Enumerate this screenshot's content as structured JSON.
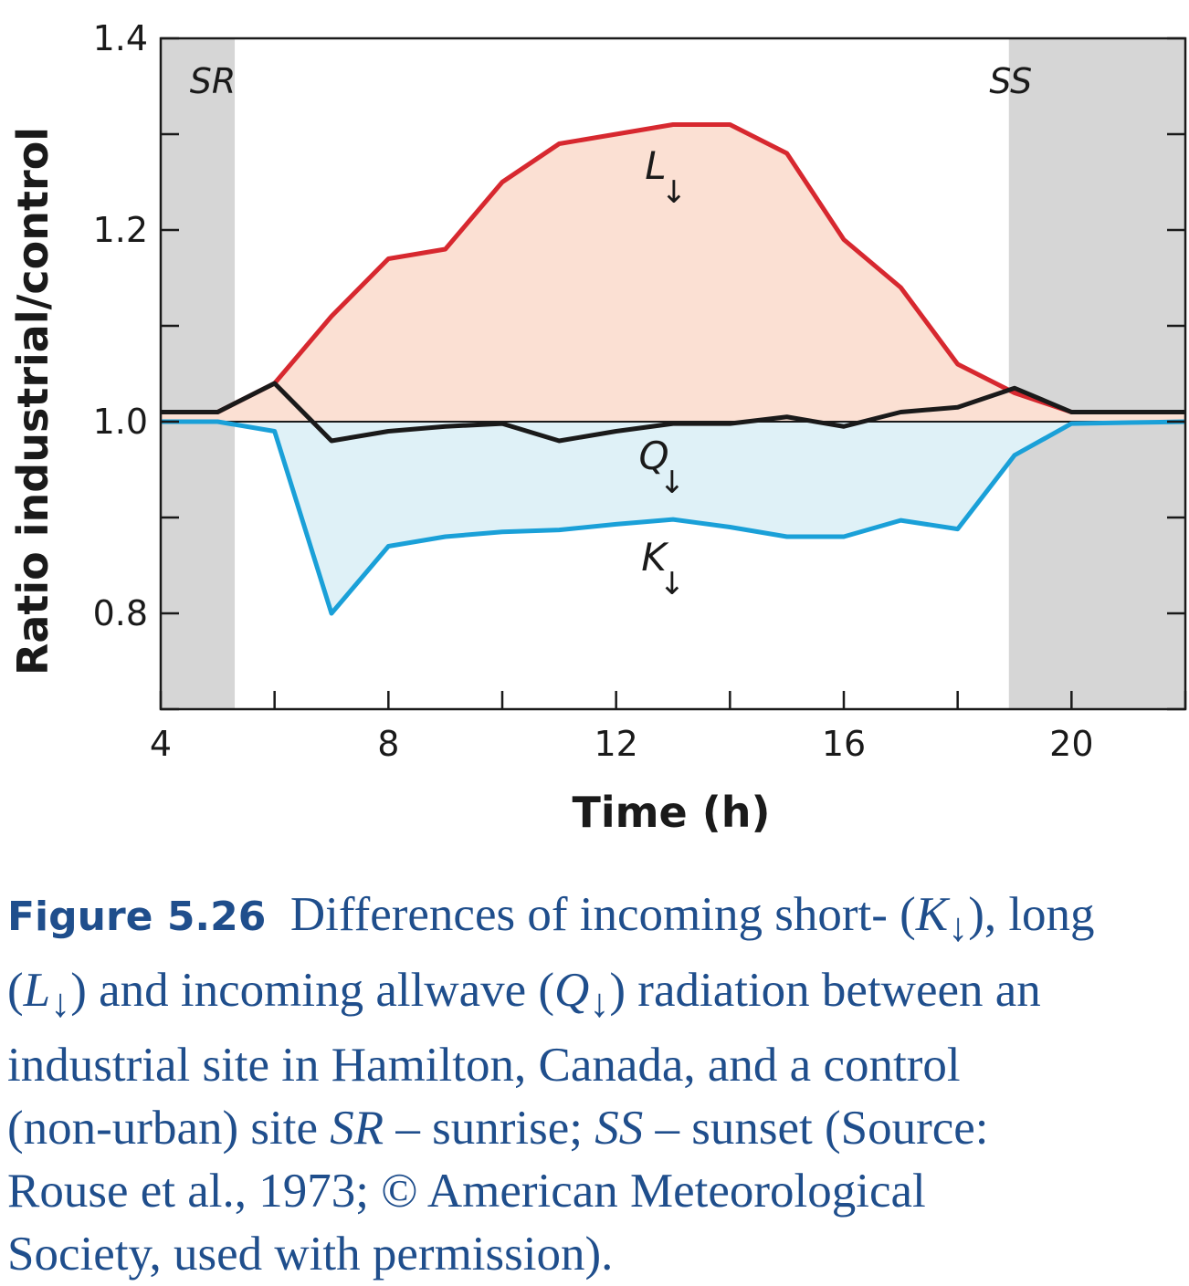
{
  "chart_data": {
    "type": "line",
    "xlabel": "Time (h)",
    "ylabel": "Ratio industrial/control",
    "xlim": [
      4,
      22
    ],
    "ylim": [
      0.7,
      1.4
    ],
    "x_ticks": [
      4,
      6,
      8,
      10,
      12,
      14,
      16,
      18,
      20,
      22
    ],
    "x_tick_labels": [
      "4",
      "8",
      "12",
      "16",
      "20"
    ],
    "x_tick_label_values": [
      4,
      8,
      12,
      16,
      20
    ],
    "y_ticks": [
      0.7,
      0.8,
      0.9,
      1.0,
      1.1,
      1.2,
      1.3,
      1.4
    ],
    "y_tick_labels": [
      "0.8",
      "1.0",
      "1.2",
      "1.4"
    ],
    "y_tick_label_values": [
      0.8,
      1.0,
      1.2,
      1.4
    ],
    "reference_line": 1.0,
    "shaded_periods": [
      {
        "label": "SR",
        "from": 4,
        "to": 5.3
      },
      {
        "label": "SS",
        "from": 18.9,
        "to": 22
      }
    ],
    "series": [
      {
        "name": "L↓",
        "color": "#d7282f",
        "fill": "#fbe0d3",
        "x": [
          4,
          5,
          6,
          7,
          8,
          9,
          10,
          11,
          12,
          13,
          14,
          15,
          16,
          17,
          18,
          19,
          20,
          21,
          22
        ],
        "y": [
          1.01,
          1.01,
          1.04,
          1.11,
          1.17,
          1.18,
          1.25,
          1.29,
          1.3,
          1.31,
          1.31,
          1.28,
          1.19,
          1.14,
          1.06,
          1.03,
          1.01,
          1.01,
          1.01
        ]
      },
      {
        "name": "Q↓",
        "color": "#1a1a1a",
        "x": [
          4,
          5,
          6,
          7,
          8,
          9,
          10,
          11,
          12,
          13,
          14,
          15,
          16,
          17,
          18,
          19,
          20,
          21,
          22
        ],
        "y": [
          1.01,
          1.01,
          1.04,
          0.98,
          0.99,
          0.995,
          0.998,
          0.98,
          0.99,
          0.998,
          0.998,
          1.005,
          0.995,
          1.01,
          1.015,
          1.035,
          1.01,
          1.01,
          1.01
        ]
      },
      {
        "name": "K↓",
        "color": "#1aa0d8",
        "fill": "#dff1f7",
        "x": [
          4,
          5,
          6,
          7,
          8,
          9,
          10,
          11,
          12,
          13,
          14,
          15,
          16,
          17,
          18,
          19,
          20,
          21,
          22
        ],
        "y": [
          1.0,
          1.0,
          0.99,
          0.8,
          0.87,
          0.88,
          0.885,
          0.887,
          0.893,
          0.898,
          0.89,
          0.88,
          0.88,
          0.897,
          0.888,
          0.965,
          0.998,
          0.999,
          1.0
        ]
      }
    ],
    "annotations": [
      {
        "text": "SR",
        "x": 5.3,
        "y": 1.35
      },
      {
        "text": "SS",
        "x": 18.9,
        "y": 1.35
      },
      {
        "text": "L",
        "subscript": "↓",
        "x": 13,
        "y": 1.25
      },
      {
        "text": "Q",
        "subscript": "↓",
        "x": 13,
        "y": 0.93
      },
      {
        "text": "K",
        "subscript": "↓",
        "x": 13,
        "y": 0.83
      }
    ]
  },
  "caption": {
    "figure_label": "Figure 5.26",
    "t1": "Differences of incoming short- (",
    "k_symbol": "K",
    "arrow": "↓",
    "t2": "), long",
    "t3": "(",
    "l_symbol": "L",
    "t4": ") and incoming allwave (",
    "q_symbol": "Q",
    "t5": ") radiation between an",
    "t6": "industrial site in Hamilton, Canada, and a control",
    "t7": "(non-urban) site ",
    "sr": "SR",
    "t8": " – sunrise; ",
    "ss": "SS",
    "t9": " – sunset (Source:",
    "t10": "Rouse et al., 1973; © American Meteorological",
    "t11": "Society, used with permission)."
  }
}
